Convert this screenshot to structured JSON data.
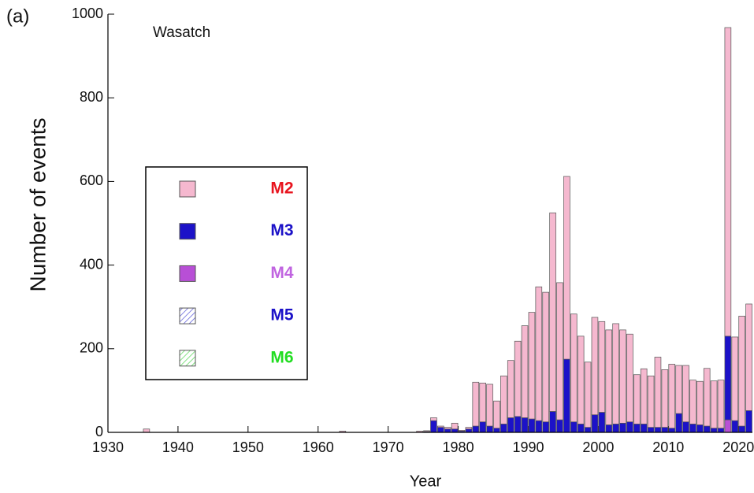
{
  "chart_data": {
    "type": "bar",
    "stacked": true,
    "annotations": [
      "(a)",
      "Wasatch"
    ],
    "xlabel": "Year",
    "ylabel": "Number of events",
    "x": [
      1935,
      1963,
      1974,
      1975,
      1976,
      1977,
      1978,
      1979,
      1980,
      1981,
      1982,
      1983,
      1984,
      1985,
      1986,
      1987,
      1988,
      1989,
      1990,
      1991,
      1992,
      1993,
      1994,
      1995,
      1996,
      1997,
      1998,
      1999,
      2000,
      2001,
      2002,
      2003,
      2004,
      2005,
      2006,
      2007,
      2008,
      2009,
      2010,
      2011,
      2012,
      2013,
      2014,
      2015,
      2016,
      2017,
      2018,
      2019,
      2020,
      2021
    ],
    "series": [
      {
        "name": "M2",
        "color": "#f5b8cf",
        "label_color": "#e8141e",
        "hatch": false,
        "values": [
          8,
          3,
          3,
          2,
          7,
          3,
          4,
          14,
          2,
          4,
          105,
          93,
          100,
          65,
          115,
          137,
          180,
          220,
          255,
          320,
          310,
          475,
          328,
          437,
          258,
          210,
          156,
          233,
          217,
          227,
          240,
          223,
          210,
          118,
          132,
          123,
          168,
          138,
          153,
          115,
          135,
          105,
          104,
          138,
          113,
          115,
          738,
          200,
          263,
          255
        ]
      },
      {
        "name": "M3",
        "color": "#1c12c8",
        "label_color": "#1c12c8",
        "hatch": false,
        "values": [
          0,
          0,
          0,
          2,
          28,
          12,
          8,
          8,
          3,
          8,
          15,
          25,
          15,
          10,
          20,
          35,
          38,
          35,
          32,
          28,
          25,
          50,
          30,
          175,
          25,
          20,
          12,
          42,
          48,
          18,
          20,
          22,
          25,
          20,
          20,
          12,
          12,
          12,
          10,
          45,
          25,
          20,
          18,
          15,
          10,
          10,
          200,
          28,
          15,
          52
        ]
      },
      {
        "name": "M4",
        "color": "#b84fd6",
        "label_color": "#c064e0",
        "hatch": false,
        "values": [
          0,
          0,
          0,
          0,
          0,
          0,
          0,
          0,
          0,
          0,
          0,
          0,
          0,
          0,
          0,
          0,
          0,
          0,
          0,
          0,
          0,
          0,
          0,
          0,
          0,
          0,
          0,
          0,
          0,
          0,
          0,
          0,
          0,
          0,
          0,
          0,
          0,
          0,
          0,
          0,
          0,
          0,
          0,
          0,
          0,
          0,
          30,
          0,
          0,
          0
        ]
      },
      {
        "name": "M5",
        "color": "#5a5ad8",
        "label_color": "#1c12c8",
        "hatch": true,
        "values": [
          0,
          0,
          0,
          0,
          0,
          0,
          0,
          0,
          0,
          0,
          0,
          0,
          0,
          0,
          0,
          0,
          0,
          0,
          0,
          0,
          0,
          0,
          0,
          0,
          0,
          0,
          0,
          0,
          0,
          0,
          0,
          0,
          0,
          0,
          0,
          0,
          0,
          0,
          0,
          0,
          0,
          0,
          0,
          0,
          0,
          0,
          0,
          0,
          0,
          0
        ]
      },
      {
        "name": "M6",
        "color": "#5ad85a",
        "label_color": "#22dd22",
        "hatch": true,
        "values": [
          0,
          0,
          0,
          0,
          0,
          0,
          0,
          0,
          0,
          0,
          0,
          0,
          0,
          0,
          0,
          0,
          0,
          0,
          0,
          0,
          0,
          0,
          0,
          0,
          0,
          0,
          0,
          0,
          0,
          0,
          0,
          0,
          0,
          0,
          0,
          0,
          0,
          0,
          0,
          0,
          0,
          0,
          0,
          0,
          0,
          0,
          0,
          0,
          0,
          0
        ]
      }
    ],
    "xlim": [
      1930,
      2022
    ],
    "xticks": [
      1930,
      1940,
      1950,
      1960,
      1970,
      1980,
      1990,
      2000,
      2010,
      2020
    ],
    "ylim": [
      0,
      1000
    ],
    "yticks": [
      0,
      200,
      400,
      600,
      800,
      1000
    ],
    "legend": "left"
  }
}
